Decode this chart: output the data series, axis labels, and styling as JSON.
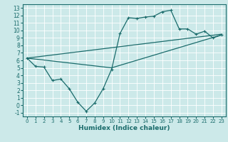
{
  "xlabel": "Humidex (Indice chaleur)",
  "bg_color": "#cce9e9",
  "line_color": "#1a6b6b",
  "xlim": [
    -0.5,
    23.5
  ],
  "ylim": [
    -1.5,
    13.5
  ],
  "xticks": [
    0,
    1,
    2,
    3,
    4,
    5,
    6,
    7,
    8,
    9,
    10,
    11,
    12,
    13,
    14,
    15,
    16,
    17,
    18,
    19,
    20,
    21,
    22,
    23
  ],
  "yticks": [
    -1,
    0,
    1,
    2,
    3,
    4,
    5,
    6,
    7,
    8,
    9,
    10,
    11,
    12,
    13
  ],
  "curve_x": [
    0,
    1,
    2,
    3,
    4,
    5,
    6,
    7,
    8,
    9,
    10,
    11,
    12,
    13,
    14,
    15,
    16,
    17,
    18,
    19,
    20,
    21,
    22,
    23
  ],
  "curve_y": [
    6.3,
    5.2,
    5.1,
    3.3,
    3.5,
    2.2,
    0.4,
    -0.8,
    0.3,
    2.2,
    4.8,
    9.6,
    11.7,
    11.6,
    11.8,
    11.9,
    12.5,
    12.7,
    10.2,
    10.2,
    9.5,
    9.9,
    9.0,
    9.4
  ],
  "line1_x": [
    0,
    23
  ],
  "line1_y": [
    6.3,
    9.5
  ],
  "line2_x": [
    0,
    10,
    23
  ],
  "line2_y": [
    6.3,
    5.0,
    9.4
  ]
}
